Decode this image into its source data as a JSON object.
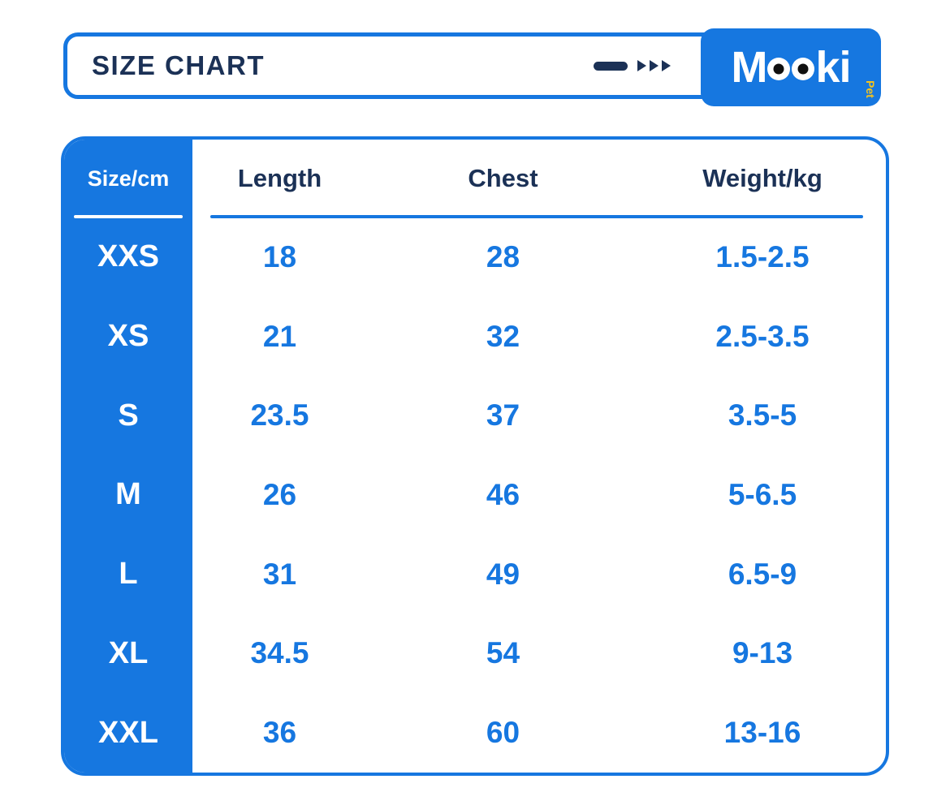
{
  "colors": {
    "accent_blue": "#1677e0",
    "navy": "#1b3156",
    "logo_pet_yellow": "#f6c31c",
    "background": "#ffffff"
  },
  "header": {
    "title": "SIZE CHART",
    "logo": {
      "text": "Mooki",
      "m": "M",
      "ki": "ki",
      "pet": "Pet"
    }
  },
  "chart_data": {
    "type": "table",
    "title": "SIZE CHART",
    "columns": [
      "Size/cm",
      "Length",
      "Chest",
      "Weight/kg"
    ],
    "rows": [
      {
        "size": "XXS",
        "length": "18",
        "chest": "28",
        "weight": "1.5-2.5"
      },
      {
        "size": "XS",
        "length": "21",
        "chest": "32",
        "weight": "2.5-3.5"
      },
      {
        "size": "S",
        "length": "23.5",
        "chest": "37",
        "weight": "3.5-5"
      },
      {
        "size": "M",
        "length": "26",
        "chest": "46",
        "weight": "5-6.5"
      },
      {
        "size": "L",
        "length": "31",
        "chest": "49",
        "weight": "6.5-9"
      },
      {
        "size": "XL",
        "length": "34.5",
        "chest": "54",
        "weight": "9-13"
      },
      {
        "size": "XXL",
        "length": "36",
        "chest": "60",
        "weight": "13-16"
      }
    ]
  }
}
